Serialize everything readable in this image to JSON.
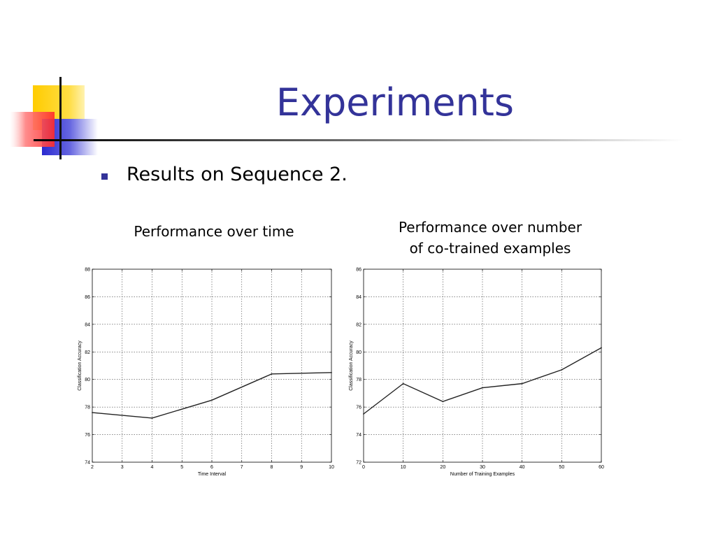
{
  "slide": {
    "title": "Experiments",
    "bullet": "Results on Sequence 2.",
    "colors": {
      "title": "#333399",
      "bullet": "#333399",
      "deco_yellow": "#ffcc00",
      "deco_blue": "#3333cc",
      "deco_red": "#ff3333"
    }
  },
  "captions": {
    "left": "Performance over time",
    "right_line1": "Performance over number",
    "right_line2": "of co-trained examples"
  },
  "chart_data": [
    {
      "type": "line",
      "title": "",
      "xlabel": "Time Interval",
      "ylabel": "Classification Accuracy",
      "xlim": [
        2,
        10
      ],
      "ylim": [
        74,
        88
      ],
      "xticks": [
        2,
        3,
        4,
        5,
        6,
        7,
        8,
        9,
        10
      ],
      "yticks": [
        74,
        76,
        78,
        80,
        82,
        84,
        86,
        88
      ],
      "grid": true,
      "series": [
        {
          "x": [
            2,
            4,
            6,
            8,
            10
          ],
          "y": [
            77.6,
            77.2,
            78.5,
            80.4,
            80.5
          ]
        }
      ]
    },
    {
      "type": "line",
      "title": "",
      "xlabel": "Number of Training Examples",
      "ylabel": "Classification Accuracy",
      "xlim": [
        0,
        60
      ],
      "ylim": [
        72,
        86
      ],
      "xticks": [
        0,
        10,
        20,
        30,
        40,
        50,
        60
      ],
      "yticks": [
        72,
        74,
        76,
        78,
        80,
        82,
        84,
        86
      ],
      "grid": true,
      "series": [
        {
          "x": [
            0,
            10,
            20,
            30,
            40,
            50,
            60
          ],
          "y": [
            75.5,
            77.7,
            76.4,
            77.4,
            77.7,
            78.7,
            80.3
          ]
        }
      ]
    }
  ]
}
